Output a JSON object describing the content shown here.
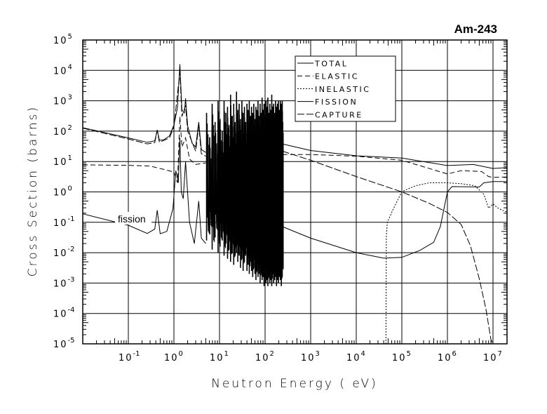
{
  "chart_data": {
    "type": "line",
    "title": "Am-243",
    "xlabel": "Neutron Energy ( eV)",
    "ylabel": "Cross Section (barns)",
    "xscale": "log",
    "yscale": "log",
    "xlim": [
      0.01,
      20000000
    ],
    "ylim": [
      1e-05,
      100000
    ],
    "x_tick_exponents": [
      -1,
      0,
      1,
      2,
      3,
      4,
      5,
      6,
      7
    ],
    "y_tick_exponents": [
      -5,
      -4,
      -3,
      -2,
      -1,
      0,
      1,
      2,
      3,
      4,
      5
    ],
    "tick_base": "10",
    "grid": true,
    "legend_position": "top-center-right",
    "annotation": {
      "text": "fission",
      "target_series": "FISSION",
      "at_energy_eV": 0.12
    },
    "series": [
      {
        "name": "TOTAL",
        "style": "solid",
        "points": [
          [
            0.01,
            130
          ],
          [
            0.1,
            60
          ],
          [
            0.26,
            43
          ],
          [
            0.38,
            48
          ],
          [
            0.43,
            110
          ],
          [
            0.48,
            50
          ],
          [
            0.6,
            52
          ],
          [
            0.8,
            70
          ],
          [
            1.0,
            160
          ],
          [
            1.2,
            600
          ],
          [
            1.35,
            16000
          ],
          [
            1.5,
            500
          ],
          [
            1.7,
            400
          ],
          [
            1.8,
            1200
          ],
          [
            2.0,
            150
          ],
          [
            2.5,
            40
          ],
          [
            3.0,
            30
          ],
          [
            3.5,
            200
          ],
          [
            4.0,
            25
          ],
          [
            5,
            20
          ]
        ],
        "points_high": [
          [
            240,
            38
          ],
          [
            1000,
            23
          ],
          [
            10000,
            15.5
          ],
          [
            100000,
            13
          ],
          [
            1000000,
            7.4
          ],
          [
            3700000,
            8
          ],
          [
            10000000,
            5.9
          ],
          [
            20000000,
            6.3
          ]
        ]
      },
      {
        "name": "ELASTIC",
        "style": "dashed",
        "points": [
          [
            0.01,
            7.8
          ],
          [
            0.1,
            7.5
          ],
          [
            0.3,
            7.1
          ],
          [
            0.6,
            5.5
          ],
          [
            1.0,
            4.5
          ],
          [
            1.2,
            2
          ],
          [
            1.35,
            300
          ],
          [
            1.5,
            30
          ],
          [
            1.8,
            60
          ],
          [
            2.2,
            12
          ],
          [
            3,
            8
          ],
          [
            5,
            9
          ]
        ],
        "points_high": [
          [
            240,
            17
          ],
          [
            1000,
            17
          ],
          [
            10000,
            15
          ],
          [
            100000,
            11
          ],
          [
            1000000,
            3.9
          ],
          [
            2000000,
            5
          ],
          [
            5600000,
            4.7
          ],
          [
            8000000,
            3.2
          ],
          [
            10000000,
            3
          ],
          [
            20000000,
            3.1
          ]
        ]
      },
      {
        "name": "INELASTIC",
        "style": "dotted",
        "points": [],
        "points_high": [
          [
            44700,
            1e-05
          ],
          [
            45700,
            0.034
          ],
          [
            48000,
            0.1
          ],
          [
            63000,
            0.25
          ],
          [
            100000,
            1.02
          ],
          [
            200000,
            1.6
          ],
          [
            400000,
            2.0
          ],
          [
            1000000,
            2.0
          ],
          [
            2000000,
            1.86
          ],
          [
            4000000,
            1.6
          ],
          [
            6300000,
            0.83
          ],
          [
            8000000,
            0.29
          ],
          [
            10000000,
            0.4
          ],
          [
            12600000,
            0.3
          ],
          [
            16000000,
            0.25
          ],
          [
            20000000,
            0.22
          ]
        ]
      },
      {
        "name": "FISSION",
        "style": "solid",
        "points": [
          [
            0.01,
            0.19
          ],
          [
            0.1,
            0.08
          ],
          [
            0.26,
            0.043
          ],
          [
            0.38,
            0.06
          ],
          [
            0.43,
            0.25
          ],
          [
            0.5,
            0.042
          ],
          [
            0.7,
            0.05
          ],
          [
            0.95,
            0.28
          ],
          [
            1.1,
            5
          ],
          [
            1.25,
            2
          ],
          [
            1.35,
            60
          ],
          [
            1.45,
            1
          ],
          [
            1.6,
            0.6
          ],
          [
            1.8,
            10
          ],
          [
            2.2,
            0.1
          ],
          [
            2.8,
            0.02
          ],
          [
            3.5,
            0.5
          ],
          [
            4,
            0.03
          ],
          [
            5,
            0.02
          ]
        ],
        "points_high": [
          [
            240,
            0.072
          ],
          [
            1000,
            0.03
          ],
          [
            10000,
            0.01
          ],
          [
            40000,
            0.0066
          ],
          [
            100000,
            0.007
          ],
          [
            250000,
            0.012
          ],
          [
            500000,
            0.022
          ],
          [
            700000,
            0.072
          ],
          [
            1000000,
            1.0
          ],
          [
            1260000,
            1.5
          ],
          [
            5000000,
            1.45
          ],
          [
            6300000,
            2.0
          ],
          [
            10000000,
            2.2
          ],
          [
            20000000,
            2.2
          ]
        ]
      },
      {
        "name": "CAPTURE",
        "style": "longdash",
        "points": [
          [
            0.01,
            125
          ],
          [
            0.1,
            55
          ],
          [
            0.26,
            38
          ],
          [
            0.38,
            42
          ],
          [
            0.43,
            105
          ],
          [
            0.48,
            43
          ],
          [
            0.8,
            60
          ],
          [
            1.0,
            140
          ],
          [
            1.35,
            9000
          ],
          [
            1.5,
            300
          ],
          [
            1.8,
            700
          ],
          [
            2.0,
            100
          ],
          [
            3,
            22
          ],
          [
            3.5,
            150
          ],
          [
            4,
            18
          ],
          [
            5,
            15
          ]
        ],
        "points_high": [
          [
            240,
            22
          ],
          [
            1000,
            11
          ],
          [
            10000,
            3.2
          ],
          [
            100000,
            1.0
          ],
          [
            400000,
            0.42
          ],
          [
            1000000,
            0.21
          ],
          [
            2000000,
            0.085
          ],
          [
            3200000,
            0.017
          ],
          [
            5000000,
            0.0014
          ],
          [
            7000000,
            0.00014
          ],
          [
            9000000,
            1.4e-05
          ],
          [
            10000000,
            1e-05
          ]
        ]
      }
    ],
    "resonance_region": {
      "columns": [
        "energy_eV",
        "peak_log10_barns",
        "trough_log10_barns"
      ],
      "values": [
        [
          5.2,
          2.6,
          -1.6
        ],
        [
          6.1,
          1.8,
          -1.4
        ],
        [
          6.9,
          2.9,
          -1.9
        ],
        [
          8.0,
          2.3,
          -1.5
        ],
        [
          9.3,
          3.0,
          -2.0
        ],
        [
          10.3,
          2.4,
          -1.8
        ],
        [
          11.5,
          2.0,
          -1.6
        ],
        [
          12.6,
          3.0,
          -2.1
        ],
        [
          13.8,
          2.6,
          -1.7
        ],
        [
          15.0,
          2.8,
          -2.2
        ],
        [
          16.2,
          2.2,
          -1.9
        ],
        [
          17.5,
          3.2,
          -2.3
        ],
        [
          19.0,
          2.5,
          -2.0
        ],
        [
          20.5,
          2.9,
          -2.4
        ],
        [
          22.0,
          2.3,
          -2.1
        ],
        [
          23.6,
          3.3,
          -2.0
        ],
        [
          25.2,
          2.7,
          -2.3
        ],
        [
          27.0,
          2.9,
          -2.1
        ],
        [
          28.9,
          2.4,
          -2.5
        ],
        [
          31.0,
          3.0,
          -2.2
        ],
        [
          33.0,
          2.6,
          -2.6
        ],
        [
          35.2,
          2.8,
          -2.3
        ],
        [
          37.5,
          2.3,
          -2.1
        ],
        [
          40.0,
          2.9,
          -2.6
        ],
        [
          42.5,
          2.7,
          -2.4
        ],
        [
          45.0,
          3.0,
          -2.7
        ],
        [
          47.8,
          2.5,
          -2.3
        ],
        [
          50.5,
          2.8,
          -2.6
        ],
        [
          53.5,
          2.6,
          -2.8
        ],
        [
          56.5,
          2.9,
          -2.5
        ],
        [
          60.0,
          2.4,
          -2.7
        ],
        [
          63.0,
          2.8,
          -2.9
        ],
        [
          66.5,
          2.7,
          -2.6
        ],
        [
          70.0,
          3.0,
          -2.8
        ],
        [
          74.0,
          2.5,
          -2.7
        ],
        [
          78.0,
          2.9,
          -3.0
        ],
        [
          82.0,
          2.6,
          -2.7
        ],
        [
          86.0,
          3.1,
          -2.9
        ],
        [
          90.5,
          2.7,
          -2.8
        ],
        [
          95.0,
          2.9,
          -3.1
        ],
        [
          100,
          2.5,
          -2.8
        ],
        [
          105,
          3.0,
          -3.0
        ],
        [
          110,
          2.8,
          -2.9
        ],
        [
          115,
          3.1,
          -3.1
        ],
        [
          121,
          2.6,
          -2.8
        ],
        [
          127,
          2.9,
          -3.0
        ],
        [
          133,
          2.7,
          -2.9
        ],
        [
          140,
          3.2,
          -3.1
        ],
        [
          147,
          2.8,
          -2.7
        ],
        [
          154,
          2.9,
          -3.0
        ],
        [
          162,
          2.6,
          -2.9
        ],
        [
          170,
          3.0,
          -2.8
        ],
        [
          178,
          2.8,
          -3.1
        ],
        [
          187,
          2.9,
          -2.9
        ],
        [
          196,
          3.0,
          -3.0
        ],
        [
          206,
          2.7,
          -2.8
        ],
        [
          216,
          3.0,
          -2.9
        ],
        [
          227,
          2.9,
          -3.1
        ],
        [
          238,
          3.0,
          -2.8
        ]
      ]
    }
  }
}
